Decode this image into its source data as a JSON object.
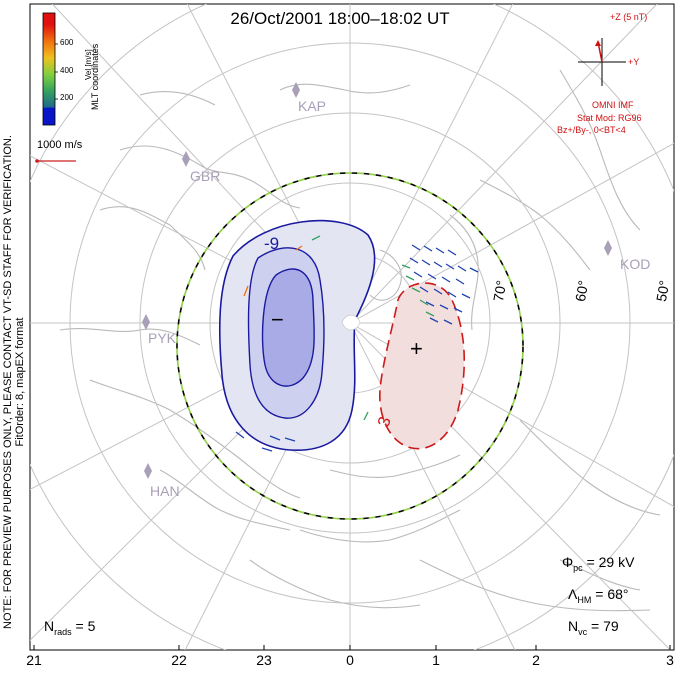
{
  "header": {
    "title": "26/Oct/2001 18:00–18:02 UT"
  },
  "side_note": {
    "line1": "NOTE: FOR PREVIEW PURPOSES ONLY, PLEASE CONTACT VT-SD STAFF FOR VERIFICATION.",
    "line2": "FitOrder: 8, mapEX format"
  },
  "color_scale": {
    "label": "Vel [m/s]",
    "ticks": [
      "600",
      "400",
      "200"
    ],
    "colors": [
      "#0a14c8",
      "#1e6a8a",
      "#34a060",
      "#7fd040",
      "#f0c020",
      "#f07010",
      "#e01010"
    ],
    "coordinates_label": "MLT coordinates"
  },
  "reference_vector": {
    "label": "1000 m/s",
    "color": "#cc2020"
  },
  "imf": {
    "bz_label": "+Z (5 nT)",
    "by_label": "+Y",
    "source": "OMNI IMF",
    "model": "Stat Mod: RG96",
    "condition": "Bz+/By-, 0<BT<4"
  },
  "latitude_labels": [
    "70°",
    "60°",
    "50°"
  ],
  "stations": [
    "KAP",
    "GBR",
    "KOD",
    "PYK",
    "HAN"
  ],
  "contours": {
    "negative_value": "-9",
    "positive_value": "3",
    "negative_symbol": "−",
    "positive_symbol": "+",
    "negative_color": "#1a1aa0",
    "positive_color": "#cc1a1a"
  },
  "mlt_ticks": [
    "21",
    "22",
    "23",
    "0",
    "1",
    "2",
    "3"
  ],
  "stats": {
    "phi_symbol": "Φ",
    "phi_sub": "pc",
    "phi_value": " = 29 kV",
    "lambda_symbol": "Λ",
    "lambda_sub": "HM",
    "lambda_value": " = 68°",
    "nvc_symbol": "N",
    "nvc_sub": "vc",
    "nvc_value": " = 79",
    "nrads_symbol": "N",
    "nrads_sub": "rads",
    "nrads_value": " = 5"
  }
}
